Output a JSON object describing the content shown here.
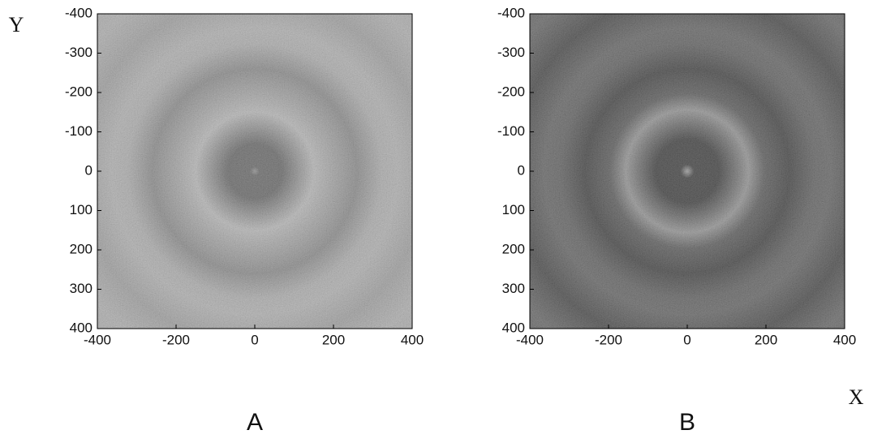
{
  "chart_data": [
    {
      "type": "image",
      "label": "A",
      "y_label": "Y",
      "xlim": [
        -400,
        400
      ],
      "ylim": [
        400,
        -400
      ],
      "xticks": [
        -400,
        -200,
        0,
        200,
        400
      ],
      "yticks": [
        -400,
        -300,
        -200,
        -100,
        0,
        100,
        200,
        300,
        400
      ]
    },
    {
      "type": "image",
      "label": "B",
      "x_label": "X",
      "xlim": [
        -400,
        400
      ],
      "ylim": [
        400,
        -400
      ],
      "xticks": [
        -400,
        -200,
        0,
        200,
        400
      ],
      "yticks": [
        -400,
        -300,
        -200,
        -100,
        0,
        100,
        200,
        300,
        400
      ]
    }
  ]
}
